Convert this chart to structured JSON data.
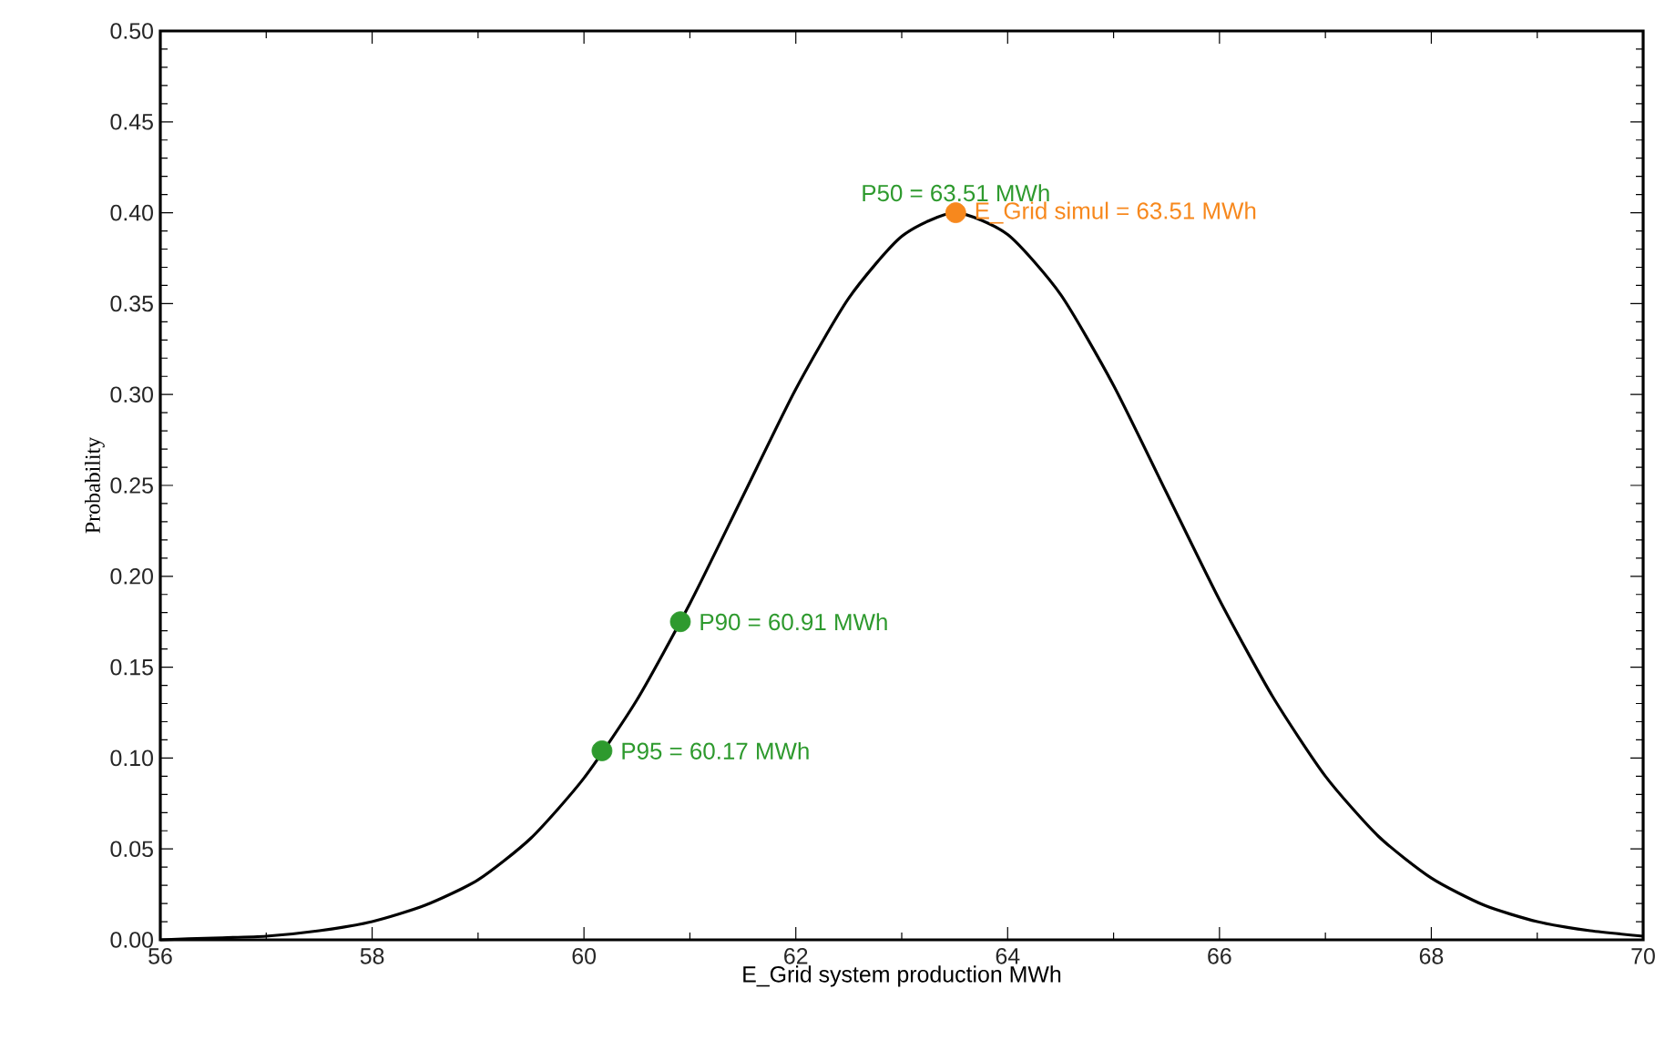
{
  "chart_data": {
    "type": "line",
    "xlabel": "E_Grid system production MWh",
    "ylabel": "Probability",
    "xlim": [
      56,
      70
    ],
    "xticks": [
      56,
      58,
      60,
      62,
      64,
      66,
      68,
      70
    ],
    "ylim": [
      0,
      0.5
    ],
    "yticks": [
      {
        "value": 0,
        "label": "0.00"
      },
      {
        "value": 0.05,
        "label": "0.05"
      },
      {
        "value": 0.1,
        "label": "0.10"
      },
      {
        "value": 0.15,
        "label": "0.15"
      },
      {
        "value": 0.2,
        "label": "0.20"
      },
      {
        "value": 0.25,
        "label": "0.25"
      },
      {
        "value": 0.3,
        "label": "0.30"
      },
      {
        "value": 0.35,
        "label": "0.35"
      },
      {
        "value": 0.4,
        "label": "0.40"
      },
      {
        "value": 0.45,
        "label": "0.45"
      },
      {
        "value": 0.5,
        "label": "0.50"
      }
    ],
    "grid": false,
    "line_style": "solid",
    "series": [
      {
        "type": "line",
        "color": "#000000",
        "x": [
          56,
          56.5,
          57,
          57.5,
          58,
          58.5,
          59,
          59.5,
          60,
          60.5,
          61,
          61.5,
          62,
          62.5,
          63,
          63.5,
          64,
          64.5,
          65,
          65.5,
          66,
          66.5,
          67,
          67.5,
          68,
          68.5,
          69,
          69.5,
          70
        ],
        "values": [
          0.0,
          0.001,
          0.002,
          0.005,
          0.01,
          0.019,
          0.033,
          0.056,
          0.089,
          0.132,
          0.185,
          0.244,
          0.303,
          0.353,
          0.387,
          0.4,
          0.388,
          0.355,
          0.305,
          0.246,
          0.187,
          0.134,
          0.09,
          0.057,
          0.034,
          0.019,
          0.01,
          0.005,
          0.002
        ]
      },
      {
        "type": "scatter",
        "color": "#2e9a2e",
        "x": [
          60.17,
          60.91
        ],
        "values": [
          0.104,
          0.175
        ]
      },
      {
        "type": "scatter",
        "color": "#f7881d",
        "x": [
          63.51
        ],
        "values": [
          0.4
        ]
      }
    ],
    "annotations": [
      {
        "text": "P95 = 60.17 MWh",
        "x": 60.17,
        "y": 0.104
      },
      {
        "text": "P90 = 60.91 MWh",
        "x": 60.91,
        "y": 0.175
      },
      {
        "text": "P50 = 63.51 MWh",
        "x": 63.51,
        "y": 0.4
      },
      {
        "text": "E_Grid simul = 63.51 MWh",
        "x": 63.51,
        "y": 0.4
      }
    ]
  }
}
